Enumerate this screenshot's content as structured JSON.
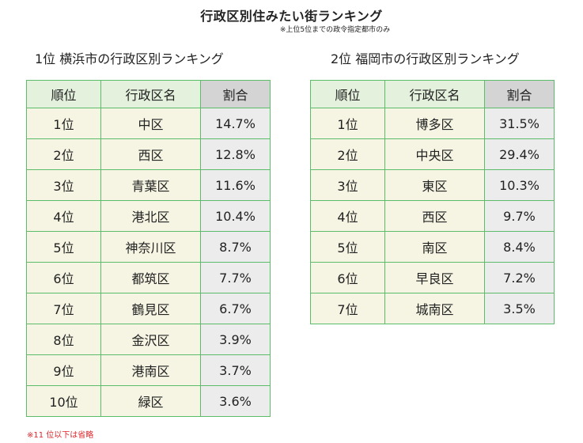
{
  "title": "行政区別住みたい街ランキング",
  "subtitle": "※上位5位までの政令指定都市のみ",
  "yokohama": {
    "heading": "1位 横浜市の行政区別ランキング",
    "headers": {
      "rank": "順位",
      "ward": "行政区名",
      "share": "割合"
    },
    "rows": [
      {
        "rank": "1位",
        "ward": "中区",
        "share": "14.7%"
      },
      {
        "rank": "2位",
        "ward": "西区",
        "share": "12.8%"
      },
      {
        "rank": "3位",
        "ward": "青葉区",
        "share": "11.6%"
      },
      {
        "rank": "4位",
        "ward": "港北区",
        "share": "10.4%"
      },
      {
        "rank": "5位",
        "ward": "神奈川区",
        "share": "8.7%"
      },
      {
        "rank": "6位",
        "ward": "都筑区",
        "share": "7.7%"
      },
      {
        "rank": "7位",
        "ward": "鶴見区",
        "share": "6.7%"
      },
      {
        "rank": "8位",
        "ward": "金沢区",
        "share": "3.9%"
      },
      {
        "rank": "9位",
        "ward": "港南区",
        "share": "3.7%"
      },
      {
        "rank": "10位",
        "ward": "緑区",
        "share": "3.6%"
      }
    ]
  },
  "fukuoka": {
    "heading": "2位 福岡市の行政区別ランキング",
    "headers": {
      "rank": "順位",
      "ward": "行政区名",
      "share": "割合"
    },
    "rows": [
      {
        "rank": "1位",
        "ward": "博多区",
        "share": "31.5%"
      },
      {
        "rank": "2位",
        "ward": "中央区",
        "share": "29.4%"
      },
      {
        "rank": "3位",
        "ward": "東区",
        "share": "10.3%"
      },
      {
        "rank": "4位",
        "ward": "西区",
        "share": "9.7%"
      },
      {
        "rank": "5位",
        "ward": "南区",
        "share": "8.4%"
      },
      {
        "rank": "6位",
        "ward": "早良区",
        "share": "7.2%"
      },
      {
        "rank": "7位",
        "ward": "城南区",
        "share": "3.5%"
      }
    ]
  },
  "footnote": "※11 位以下は省略",
  "colors": {
    "border": "#5bbd6a",
    "header_bg": "#e3f1dd",
    "share_header_bg": "#d4d4d4",
    "cell_bg": "#f6f5e3",
    "share_cell_bg": "#ececec",
    "footnote": "#e0242a"
  }
}
